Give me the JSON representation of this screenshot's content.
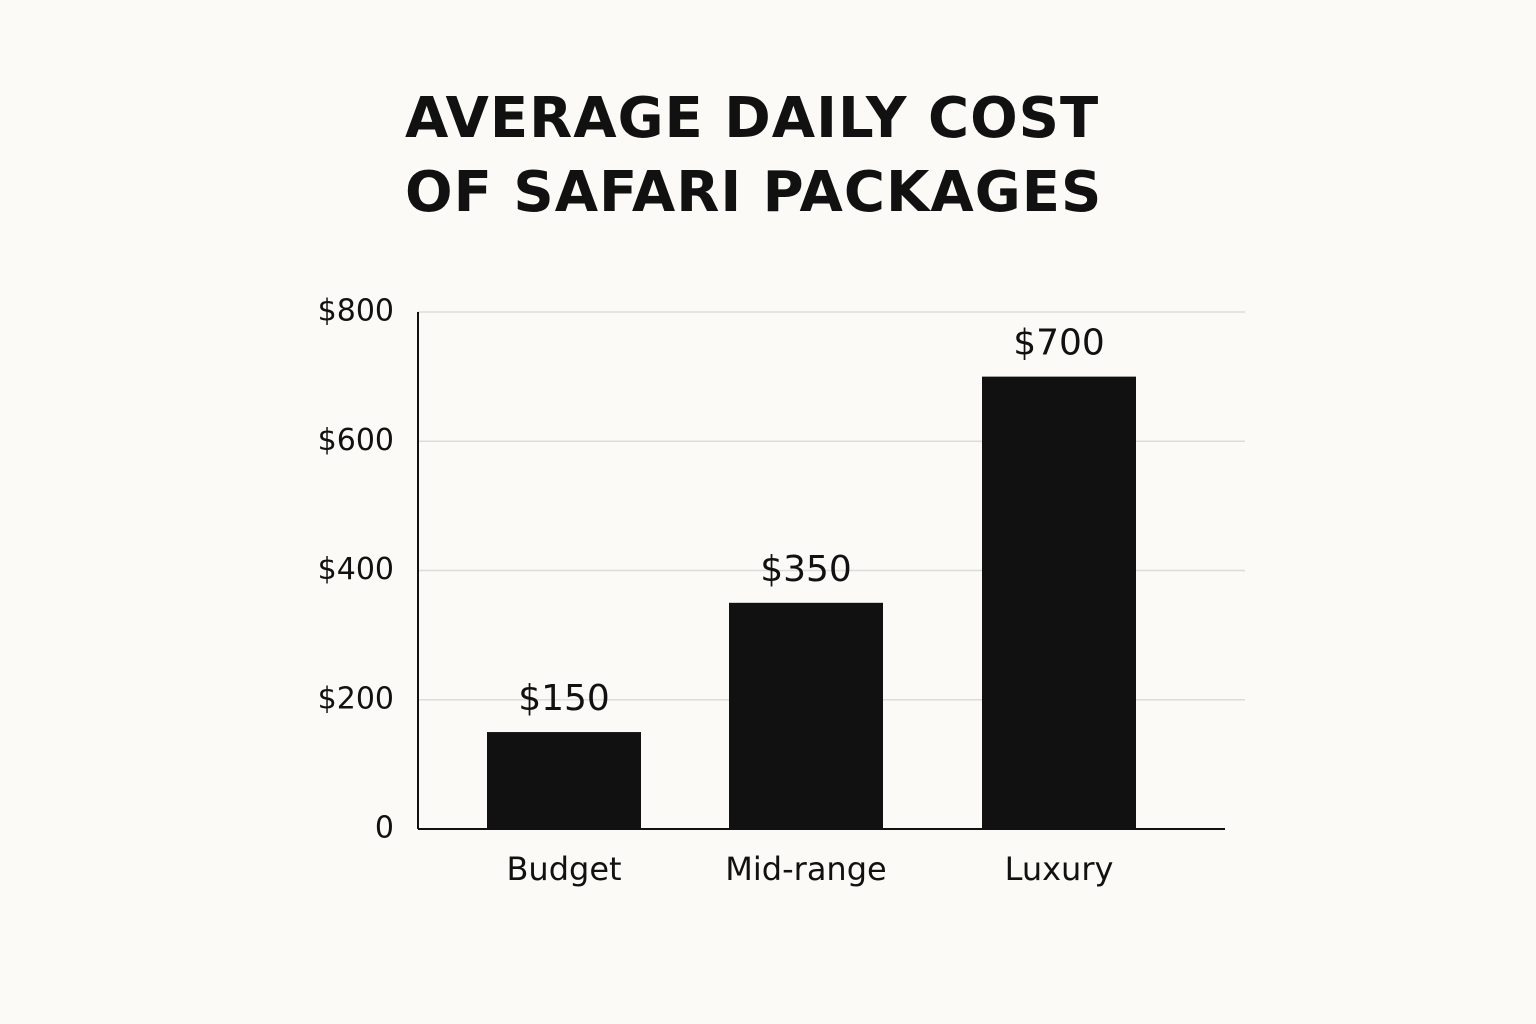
{
  "chart_data": {
    "type": "bar",
    "title": [
      "AVERAGE DAILY COST",
      "OF SAFARI PACKAGES"
    ],
    "categories": [
      "Budget",
      "Mid-range",
      "Luxury"
    ],
    "values": [
      150,
      350,
      700
    ],
    "value_labels": [
      "$150",
      "$350",
      "$700"
    ],
    "color": "#111111",
    "ylim": [
      0,
      800
    ],
    "yticks": [
      0,
      {
        "value": 200,
        "label": "$200"
      },
      {
        "value": 400,
        "label": "$400"
      },
      {
        "value": 600,
        "label": "$600"
      },
      {
        "value": 800,
        "label": "$800"
      }
    ],
    "grid": true
  }
}
